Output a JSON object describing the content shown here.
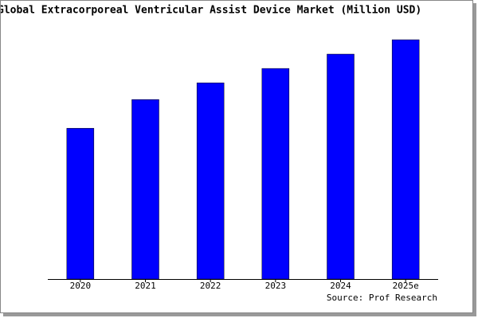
{
  "chart_data": {
    "type": "bar",
    "title": "Global Extracorporeal Ventricular Assist Device Market (Million USD)",
    "categories": [
      "2020",
      "2021",
      "2022",
      "2023",
      "2024",
      "2025e"
    ],
    "values": [
      63,
      75,
      82,
      88,
      94,
      100
    ],
    "color": "#0000ff",
    "ylim": [
      0,
      100
    ],
    "source": "Source: Prof Research"
  }
}
